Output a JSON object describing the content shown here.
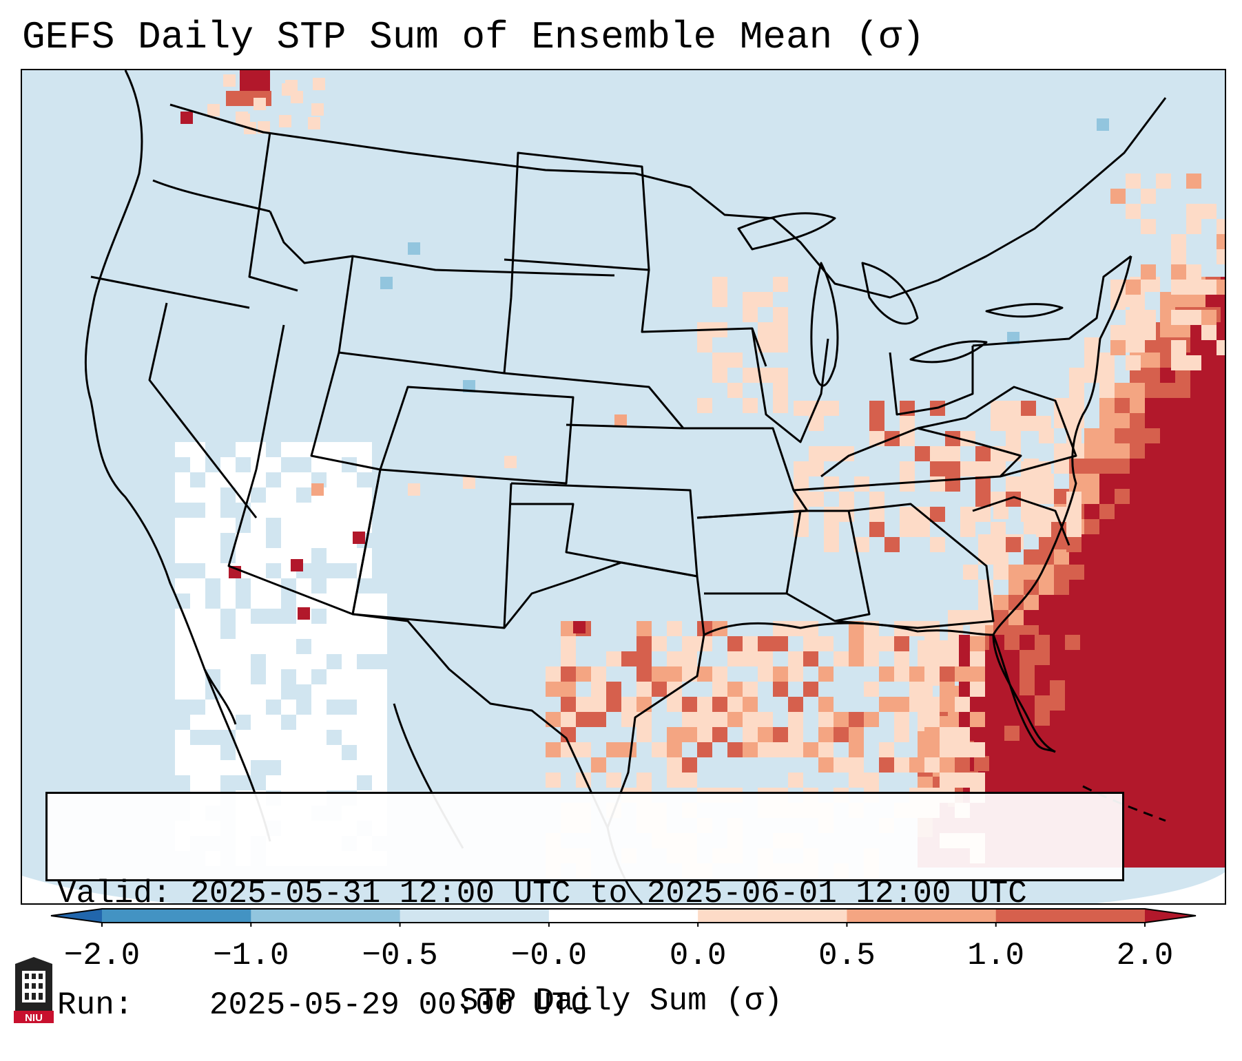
{
  "title": "GEFS Daily STP Sum of Ensemble Mean (σ)",
  "info_box": {
    "valid_label": "Valid:",
    "valid_value": "2025-05-31 12:00 UTC to 2025-06-01 12:00 UTC",
    "run_label": "Run:",
    "run_value": "2025-05-29 00:00 UTC"
  },
  "colorbar": {
    "label": "STP Daily Sum (σ)",
    "ticks": [
      "−2.0",
      "−1.0",
      "−0.5",
      "−0.0",
      "0.0",
      "0.5",
      "1.0",
      "2.0"
    ],
    "bins": [
      {
        "from": -2.0,
        "to": -1.0,
        "color": "#4393c3"
      },
      {
        "from": -1.0,
        "to": -0.5,
        "color": "#92c5de"
      },
      {
        "from": -0.5,
        "to": -0.0,
        "color": "#d1e5f0"
      },
      {
        "from": -0.0,
        "to": 0.0,
        "color": "#ffffff"
      },
      {
        "from": 0.0,
        "to": 0.5,
        "color": "#fddbc7"
      },
      {
        "from": 0.5,
        "to": 1.0,
        "color": "#f4a582"
      },
      {
        "from": 1.0,
        "to": 2.0,
        "color": "#d6604d"
      }
    ],
    "under_color": "#2166ac",
    "over_color": "#b2182b"
  },
  "map": {
    "projection": "lambert-conformal",
    "region": "CONUS",
    "background_color": "#d1e5f0",
    "high_color": "#b2182b",
    "mid_color": "#d6604d",
    "low_color": "#f4a582",
    "faint_color": "#fddbc7",
    "neutral_color": "#ffffff",
    "negative_color": "#92c5de"
  },
  "logo": {
    "text": "NIU",
    "icon": "university-seal-icon"
  }
}
